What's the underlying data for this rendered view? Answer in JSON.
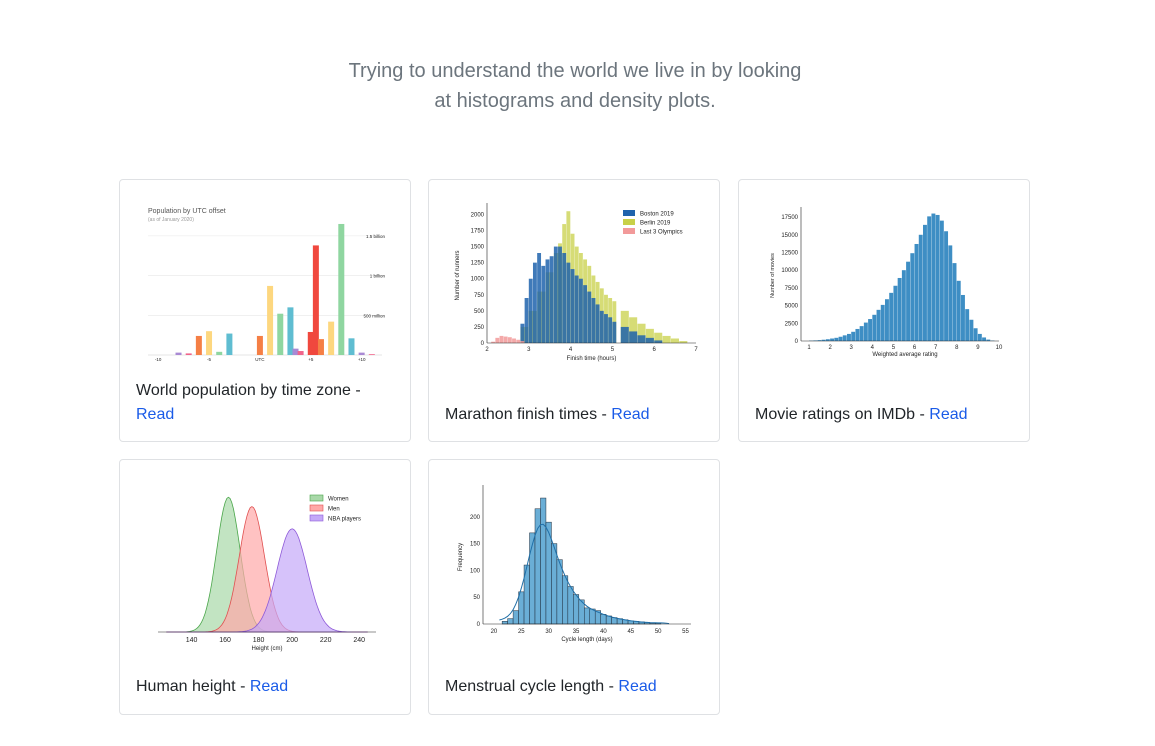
{
  "intro": {
    "line1": "Trying to understand the world we live in by looking",
    "line2": "at histograms and density plots."
  },
  "colors": {
    "link": "#1a5be8",
    "muted": "#6c757d",
    "border": "#dfe1e4"
  },
  "cards": [
    {
      "title": "World population by time zone - ",
      "link": "Read"
    },
    {
      "title": "Marathon finish times - ",
      "link": "Read"
    },
    {
      "title": "Movie ratings on IMDb - ",
      "link": "Read"
    },
    {
      "title": "Human height - ",
      "link": "Read"
    },
    {
      "title": "Menstrual cycle length - ",
      "link": "Read"
    }
  ],
  "chart_data": [
    {
      "type": "bar",
      "title": "Population by UTC offset",
      "subtitle": "(as of January 2020)",
      "x_ticks": [
        "-10",
        "-5",
        "UTC",
        "+5",
        "+10"
      ],
      "y_ticks": [
        "500 million",
        "1 billion",
        "1.5 billion"
      ],
      "ylim_millions": [
        0,
        1700
      ],
      "bars": [
        {
          "x": -8,
          "v": 30,
          "c": "#a989d4"
        },
        {
          "x": -7,
          "v": 20,
          "c": "#f0648a"
        },
        {
          "x": -6,
          "v": 240,
          "c": "#f57f45"
        },
        {
          "x": -5,
          "v": 300,
          "c": "#fdd77f"
        },
        {
          "x": -4,
          "v": 40,
          "c": "#8fd6a0"
        },
        {
          "x": -3,
          "v": 270,
          "c": "#5fbdd1"
        },
        {
          "x": 0,
          "v": 240,
          "c": "#f57f45"
        },
        {
          "x": 1,
          "v": 870,
          "c": "#fdd77f"
        },
        {
          "x": 2,
          "v": 520,
          "c": "#8fd6a0"
        },
        {
          "x": 3,
          "v": 600,
          "c": "#5fbdd1"
        },
        {
          "x": 3.5,
          "v": 80,
          "c": "#a989d4"
        },
        {
          "x": 4,
          "v": 50,
          "c": "#f0648a"
        },
        {
          "x": 5,
          "v": 290,
          "c": "#f0483e"
        },
        {
          "x": 5.5,
          "v": 1380,
          "c": "#f0483e"
        },
        {
          "x": 6,
          "v": 200,
          "c": "#f57f45"
        },
        {
          "x": 7,
          "v": 420,
          "c": "#fdd77f"
        },
        {
          "x": 8,
          "v": 1650,
          "c": "#8fd6a0"
        },
        {
          "x": 9,
          "v": 210,
          "c": "#5fbdd1"
        },
        {
          "x": 10,
          "v": 30,
          "c": "#a989d4"
        },
        {
          "x": 11,
          "v": 10,
          "c": "#f0648a"
        }
      ]
    },
    {
      "type": "bar",
      "xlabel": "Finish time (hours)",
      "ylabel": "Number of runners",
      "xlim": [
        2,
        7
      ],
      "ylim": [
        0,
        2100
      ],
      "x_ticks": [
        2,
        3,
        4,
        5,
        6,
        7
      ],
      "y_ticks": [
        0,
        250,
        500,
        750,
        1000,
        1250,
        1500,
        1750,
        2000
      ],
      "bin_width": 0.1,
      "legend": "top-right",
      "series": [
        {
          "name": "Boston 2019",
          "color": "#1f63ad",
          "x": [
            2.8,
            2.9,
            3.0,
            3.1,
            3.2,
            3.3,
            3.4,
            3.5,
            3.6,
            3.7,
            3.8,
            3.9,
            4.0,
            4.1,
            4.2,
            4.3,
            4.4,
            4.5,
            4.6,
            4.7,
            4.8,
            4.9,
            5.0,
            5.2,
            5.4,
            5.6,
            5.8,
            6.0
          ],
          "values": [
            300,
            700,
            1000,
            1250,
            1400,
            1200,
            1300,
            1350,
            1500,
            1500,
            1400,
            1250,
            1150,
            1050,
            1000,
            900,
            800,
            700,
            600,
            500,
            450,
            400,
            330,
            250,
            180,
            120,
            80,
            40
          ]
        },
        {
          "name": "Berlin 2019",
          "color": "#c8d048",
          "x": [
            2.8,
            3.0,
            3.2,
            3.4,
            3.6,
            3.7,
            3.8,
            3.9,
            4.0,
            4.1,
            4.2,
            4.3,
            4.4,
            4.5,
            4.6,
            4.7,
            4.8,
            4.9,
            5.0,
            5.2,
            5.4,
            5.6,
            5.8,
            6.0,
            6.2,
            6.4,
            6.6
          ],
          "values": [
            250,
            500,
            800,
            1100,
            1400,
            1550,
            1850,
            2050,
            1700,
            1500,
            1400,
            1300,
            1200,
            1050,
            950,
            850,
            750,
            700,
            650,
            500,
            400,
            300,
            220,
            160,
            110,
            70,
            30
          ]
        },
        {
          "name": "Last 3 Olympics",
          "color": "#f29a9a",
          "x": [
            2.1,
            2.2,
            2.3,
            2.4,
            2.5,
            2.6,
            2.7,
            2.8
          ],
          "values": [
            20,
            80,
            110,
            100,
            90,
            70,
            50,
            30
          ]
        }
      ]
    },
    {
      "type": "bar",
      "xlabel": "Weighted average rating",
      "ylabel": "Number of movies",
      "xlim": [
        1,
        10
      ],
      "ylim": [
        0,
        18500
      ],
      "x_ticks": [
        1,
        2,
        3,
        4,
        5,
        6,
        7,
        8,
        9,
        10
      ],
      "y_ticks": [
        0,
        2500,
        5000,
        7500,
        10000,
        12500,
        15000,
        17500
      ],
      "bin_width": 0.2,
      "bar_color": "#3e8ec4",
      "x": [
        1.0,
        1.2,
        1.4,
        1.6,
        1.8,
        2.0,
        2.2,
        2.4,
        2.6,
        2.8,
        3.0,
        3.2,
        3.4,
        3.6,
        3.8,
        4.0,
        4.2,
        4.4,
        4.6,
        4.8,
        5.0,
        5.2,
        5.4,
        5.6,
        5.8,
        6.0,
        6.2,
        6.4,
        6.6,
        6.8,
        7.0,
        7.2,
        7.4,
        7.6,
        7.8,
        8.0,
        8.2,
        8.4,
        8.6,
        8.8,
        9.0,
        9.2,
        9.4,
        9.6
      ],
      "values": [
        50,
        80,
        120,
        180,
        250,
        350,
        450,
        600,
        800,
        1000,
        1300,
        1700,
        2100,
        2600,
        3100,
        3700,
        4400,
        5100,
        5900,
        6800,
        7800,
        8900,
        10000,
        11200,
        12400,
        13700,
        15000,
        16400,
        17600,
        18000,
        17800,
        17000,
        15500,
        13500,
        11000,
        8500,
        6500,
        4500,
        3000,
        1800,
        1000,
        500,
        200,
        60
      ]
    },
    {
      "type": "area",
      "xlabel": "Height (cm)",
      "xlim": [
        120,
        250
      ],
      "x_ticks": [
        140,
        160,
        180,
        200,
        220,
        240
      ],
      "legend": "top-right",
      "series": [
        {
          "name": "Women",
          "color": "#4aa64a",
          "fill": "#a8d8a8",
          "mean": 162,
          "sd": 7
        },
        {
          "name": "Men",
          "color": "#e05050",
          "fill": "#ffa8a8",
          "mean": 176,
          "sd": 7.5
        },
        {
          "name": "NBA players",
          "color": "#8e5ad8",
          "fill": "#c4a8f8",
          "mean": 200,
          "sd": 9
        }
      ]
    },
    {
      "type": "bar",
      "xlabel": "Cycle length (days)",
      "ylabel": "Frequency",
      "xlim": [
        18,
        56
      ],
      "ylim": [
        0,
        250
      ],
      "x_ticks": [
        20,
        25,
        30,
        35,
        40,
        45,
        50,
        55
      ],
      "y_ticks": [
        0,
        50,
        100,
        150,
        200
      ],
      "bin_width": 1,
      "bar_color": "#6aaed6",
      "x": [
        22,
        23,
        24,
        25,
        26,
        27,
        28,
        29,
        30,
        31,
        32,
        33,
        34,
        35,
        36,
        37,
        38,
        39,
        40,
        41,
        42,
        43,
        44,
        45,
        46,
        47,
        48,
        49,
        50
      ],
      "values": [
        5,
        10,
        25,
        60,
        110,
        170,
        215,
        235,
        190,
        150,
        120,
        90,
        70,
        55,
        45,
        30,
        28,
        25,
        18,
        15,
        12,
        10,
        8,
        6,
        5,
        4,
        3,
        2,
        2
      ]
    }
  ]
}
